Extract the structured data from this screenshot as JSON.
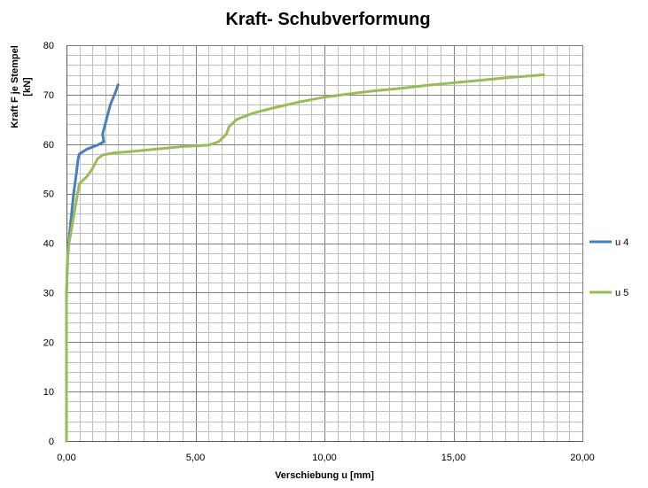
{
  "chart_data": {
    "type": "line",
    "title": "Kraft- Schubverformung",
    "xlabel": "Verschiebung u [mm]",
    "ylabel_line1": "Kraft F je Stempel",
    "ylabel_line2": "[kN]",
    "xlim": [
      0,
      20
    ],
    "ylim": [
      0,
      80
    ],
    "x_ticks": [
      0,
      5,
      10,
      15,
      20
    ],
    "x_tick_labels": [
      "0,00",
      "5,00",
      "10,00",
      "15,00",
      "20,00"
    ],
    "y_ticks": [
      0,
      10,
      20,
      30,
      40,
      50,
      60,
      70,
      80
    ],
    "y_tick_labels": [
      "0",
      "10",
      "20",
      "30",
      "40",
      "50",
      "60",
      "70",
      "80"
    ],
    "x_minor_step": 0.5,
    "y_minor_step": 2,
    "grid": true,
    "legend_position": "right",
    "series": [
      {
        "name": "u 4",
        "color": "#4a7ebb",
        "points": [
          [
            0,
            0
          ],
          [
            0,
            20
          ],
          [
            0,
            30
          ],
          [
            0.05,
            38
          ],
          [
            0.12,
            42
          ],
          [
            0.2,
            46
          ],
          [
            0.28,
            50
          ],
          [
            0.38,
            54
          ],
          [
            0.45,
            57
          ],
          [
            0.5,
            58
          ],
          [
            0.8,
            59
          ],
          [
            1.2,
            59.8
          ],
          [
            1.45,
            60.5
          ],
          [
            1.4,
            62
          ],
          [
            1.55,
            65
          ],
          [
            1.7,
            68
          ],
          [
            1.9,
            70.5
          ],
          [
            2.0,
            72
          ]
        ]
      },
      {
        "name": "u 5",
        "color": "#9bbb59",
        "points": [
          [
            0,
            0
          ],
          [
            0,
            28
          ],
          [
            0.03,
            36
          ],
          [
            0.1,
            40
          ],
          [
            0.2,
            43
          ],
          [
            0.3,
            46
          ],
          [
            0.4,
            49
          ],
          [
            0.5,
            52
          ],
          [
            0.8,
            53.5
          ],
          [
            1.0,
            55
          ],
          [
            1.2,
            57
          ],
          [
            1.4,
            57.8
          ],
          [
            1.8,
            58.2
          ],
          [
            2.5,
            58.5
          ],
          [
            3.5,
            59
          ],
          [
            4.5,
            59.5
          ],
          [
            5.5,
            59.8
          ],
          [
            5.9,
            60.5
          ],
          [
            6.2,
            62
          ],
          [
            6.3,
            63.5
          ],
          [
            6.6,
            65
          ],
          [
            7.2,
            66.2
          ],
          [
            8.0,
            67.3
          ],
          [
            9.0,
            68.5
          ],
          [
            10.0,
            69.5
          ],
          [
            11.0,
            70.2
          ],
          [
            12.0,
            70.8
          ],
          [
            13.0,
            71.3
          ],
          [
            14.0,
            71.9
          ],
          [
            15.0,
            72.4
          ],
          [
            16.0,
            72.9
          ],
          [
            17.0,
            73.4
          ],
          [
            18.0,
            73.8
          ],
          [
            18.5,
            74
          ]
        ]
      }
    ]
  }
}
